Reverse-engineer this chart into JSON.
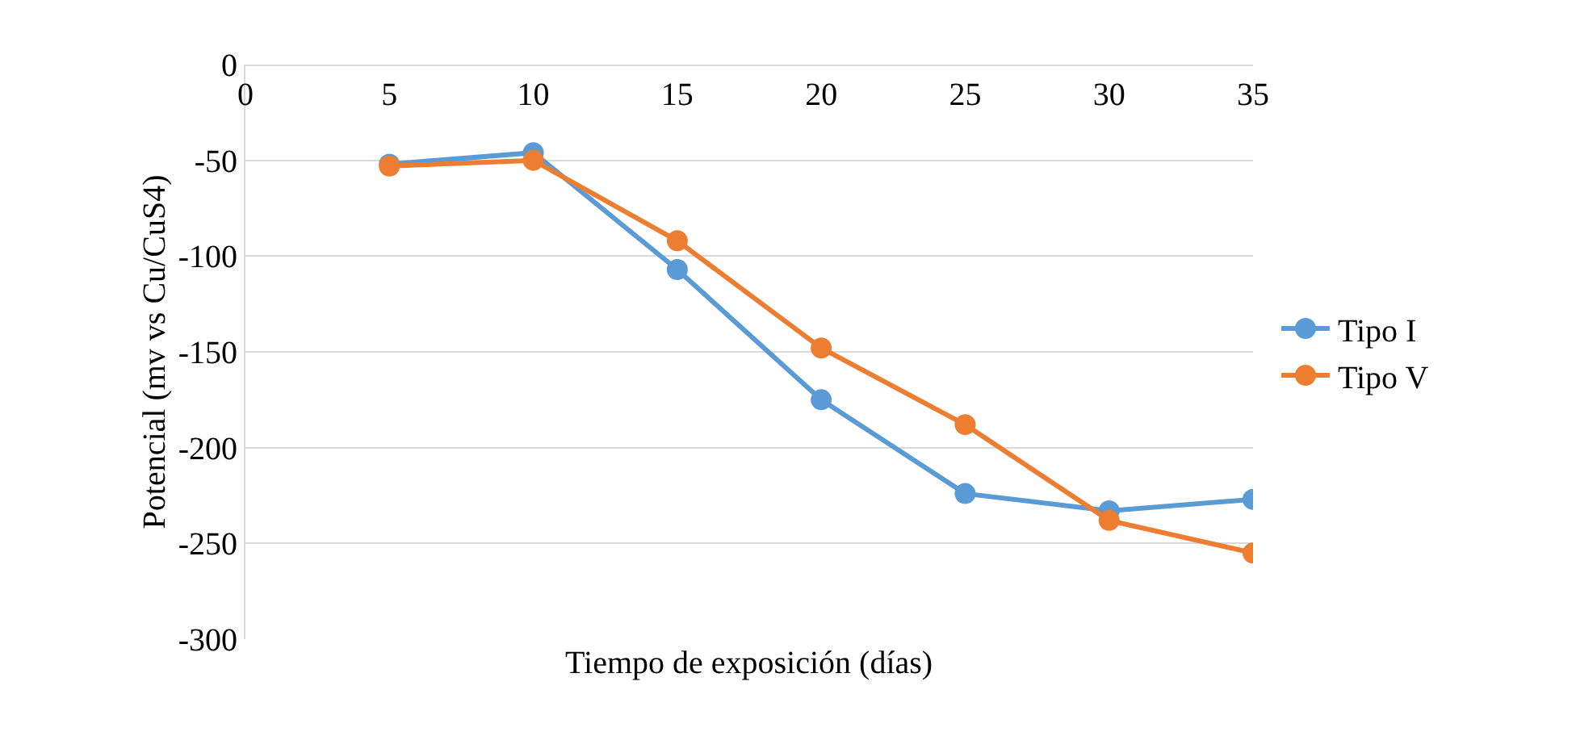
{
  "chart_data": {
    "type": "line",
    "xlabel": "Tiempo de exposición (días)",
    "ylabel": "Potencial (mv vs Cu/CuS4)",
    "x": [
      5,
      10,
      15,
      20,
      25,
      30,
      35
    ],
    "series": [
      {
        "name": "Tipo I",
        "color": "#5b9bd5",
        "values": [
          -52,
          -46,
          -107,
          -175,
          -224,
          -233,
          -227
        ]
      },
      {
        "name": "Tipo V",
        "color": "#ed7d31",
        "values": [
          -53,
          -50,
          -92,
          -148,
          -188,
          -238,
          -255
        ]
      }
    ],
    "xlim": [
      0,
      35
    ],
    "xticks": [
      0,
      5,
      10,
      15,
      20,
      25,
      30,
      35
    ],
    "ylim": [
      -300,
      0
    ],
    "yticks": [
      -300,
      -250,
      -200,
      -150,
      -100,
      -50,
      0
    ],
    "grid": "y",
    "legend": "right",
    "marker": "circle",
    "line_style": "solid"
  }
}
